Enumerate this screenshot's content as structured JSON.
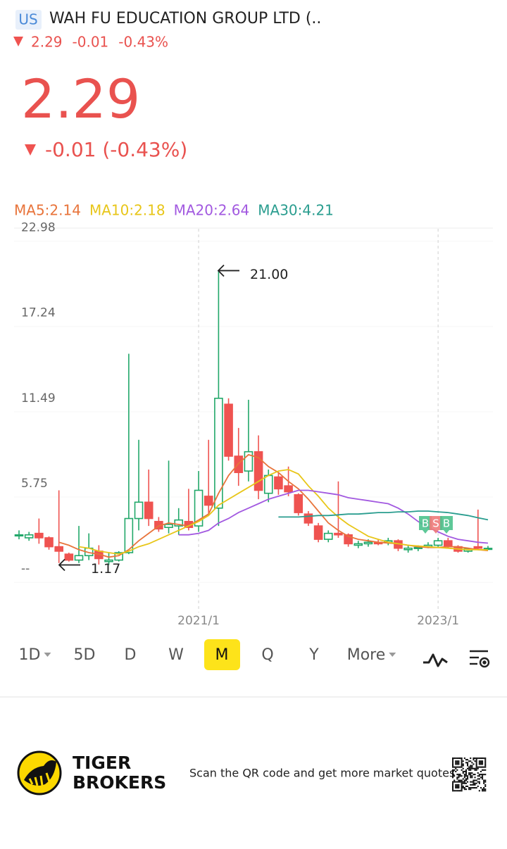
{
  "header": {
    "market": "US",
    "name": "WAH FU EDUCATION GROUP LTD  (..",
    "price": "2.29",
    "change": "-0.01",
    "change_pct": "-0.43%"
  },
  "quote": {
    "price": "2.29",
    "change": "-0.01 (-0.43%)"
  },
  "chart_data": {
    "type": "candlestick",
    "categories": [
      null,
      null,
      null,
      null,
      null,
      null,
      null,
      null,
      null,
      null,
      null,
      null,
      null,
      null,
      null,
      null,
      null,
      null,
      "2021/1",
      null,
      null,
      null,
      null,
      null,
      null,
      null,
      null,
      null,
      null,
      null,
      null,
      null,
      null,
      null,
      null,
      null,
      null,
      null,
      null,
      null,
      null,
      null,
      "2023/1",
      null,
      null,
      null,
      null,
      null
    ],
    "open": [
      3.2,
      3.0,
      3.3,
      3.0,
      2.4,
      1.9,
      1.5,
      1.8,
      2.1,
      1.4,
      1.5,
      2.0,
      4.3,
      5.4,
      4.1,
      3.7,
      3.8,
      4.1,
      3.8,
      5.8,
      5.0,
      12.0,
      8.5,
      7.5,
      8.8,
      6.0,
      7.1,
      6.5,
      5.9,
      4.6,
      3.8,
      2.9,
      3.3,
      3.2,
      2.5,
      2.6,
      2.7,
      2.7,
      2.8,
      2.2,
      2.3,
      2.4,
      2.5,
      2.8,
      2.4,
      2.1,
      2.4,
      2.25
    ],
    "high": [
      3.5,
      3.4,
      4.3,
      3.1,
      6.2,
      2.0,
      3.8,
      3.3,
      2.5,
      2.0,
      2.1,
      15.4,
      9.6,
      7.6,
      4.4,
      8.2,
      5.0,
      6.3,
      7.5,
      9.6,
      21.0,
      12.4,
      10.4,
      12.3,
      9.9,
      7.6,
      7.4,
      7.8,
      6.0,
      4.8,
      4.0,
      3.5,
      6.8,
      3.3,
      2.8,
      2.9,
      2.9,
      3.0,
      2.9,
      2.5,
      2.5,
      2.7,
      3.0,
      3.0,
      2.5,
      2.3,
      4.9,
      2.45
    ],
    "low": [
      2.9,
      2.8,
      2.6,
      2.2,
      1.3,
      1.4,
      1.3,
      1.5,
      1.2,
      1.17,
      1.4,
      1.9,
      3.5,
      3.8,
      3.4,
      3.3,
      3.2,
      3.5,
      3.4,
      4.6,
      3.8,
      8.2,
      6.5,
      6.8,
      5.6,
      5.4,
      5.9,
      5.8,
      4.5,
      3.8,
      2.7,
      2.7,
      3.0,
      2.4,
      2.3,
      2.4,
      2.5,
      2.5,
      2.1,
      2.0,
      2.1,
      2.3,
      2.4,
      2.3,
      2.0,
      2.0,
      2.2,
      2.2
    ],
    "close": [
      3.2,
      3.2,
      3.0,
      2.4,
      2.1,
      1.5,
      1.8,
      2.3,
      1.6,
      1.5,
      2.0,
      4.3,
      5.4,
      4.3,
      3.6,
      3.9,
      4.2,
      3.7,
      6.2,
      5.2,
      12.4,
      8.5,
      7.4,
      8.8,
      6.2,
      7.2,
      6.3,
      6.1,
      4.7,
      4.0,
      2.9,
      3.3,
      3.2,
      2.6,
      2.6,
      2.7,
      2.6,
      2.8,
      2.3,
      2.3,
      2.35,
      2.5,
      2.8,
      2.4,
      2.1,
      2.25,
      2.3,
      2.29
    ],
    "up_color": "#22a86a",
    "down_color": "#ef5350",
    "series": [
      {
        "name": "MA5:2.14",
        "color": "#e8743b",
        "values": [
          null,
          null,
          null,
          null,
          2.7,
          2.5,
          2.2,
          2.0,
          1.9,
          1.7,
          1.8,
          2.2,
          2.8,
          3.3,
          3.8,
          4.0,
          3.9,
          3.8,
          4.2,
          4.6,
          6.0,
          7.2,
          8.0,
          8.6,
          8.4,
          7.8,
          7.4,
          6.8,
          6.3,
          5.6,
          4.8,
          4.0,
          3.5,
          3.1,
          2.9,
          2.8,
          2.7,
          2.65,
          2.6,
          2.5,
          2.4,
          2.35,
          2.35,
          2.4,
          2.4,
          2.3,
          2.2,
          2.14
        ]
      },
      {
        "name": "MA10:2.18",
        "color": "#e8c619",
        "values": [
          null,
          null,
          null,
          null,
          null,
          null,
          2.4,
          2.3,
          2.1,
          2.0,
          1.9,
          2.1,
          2.4,
          2.6,
          2.9,
          3.2,
          3.5,
          3.8,
          4.1,
          4.5,
          5.2,
          5.6,
          6.0,
          6.4,
          6.8,
          7.2,
          7.5,
          7.6,
          7.3,
          6.5,
          5.8,
          5.0,
          4.4,
          3.9,
          3.5,
          3.1,
          2.9,
          2.7,
          2.6,
          2.5,
          2.45,
          2.4,
          2.35,
          2.3,
          2.25,
          2.2,
          2.2,
          2.18
        ]
      },
      {
        "name": "MA20:2.64",
        "color": "#a259e0",
        "values": [
          null,
          null,
          null,
          null,
          null,
          null,
          null,
          null,
          null,
          null,
          null,
          null,
          null,
          null,
          null,
          null,
          3.2,
          3.2,
          3.3,
          3.5,
          4.0,
          4.3,
          4.7,
          5.0,
          5.3,
          5.6,
          5.8,
          6.0,
          6.2,
          6.2,
          6.1,
          6.0,
          5.9,
          5.7,
          5.6,
          5.5,
          5.4,
          5.3,
          5.0,
          4.6,
          4.1,
          3.7,
          3.4,
          3.1,
          2.9,
          2.8,
          2.7,
          2.64
        ]
      },
      {
        "name": "MA30:4.21",
        "color": "#2a9d8f",
        "values": [
          null,
          null,
          null,
          null,
          null,
          null,
          null,
          null,
          null,
          null,
          null,
          null,
          null,
          null,
          null,
          null,
          null,
          null,
          null,
          null,
          null,
          null,
          null,
          null,
          null,
          null,
          4.4,
          4.4,
          4.4,
          4.45,
          4.5,
          4.5,
          4.55,
          4.6,
          4.6,
          4.65,
          4.7,
          4.7,
          4.75,
          4.75,
          4.8,
          4.8,
          4.75,
          4.7,
          4.6,
          4.5,
          4.35,
          4.21
        ]
      }
    ],
    "ylim": [
      -2.03,
      23.82
    ],
    "yticks": [
      {
        "value": 0,
        "label": "--"
      },
      5.75,
      11.49,
      17.24,
      22.98
    ],
    "high_label": {
      "value": 21.0,
      "label": "21.00"
    },
    "low_label": {
      "value": 1.17,
      "label": "1.17"
    },
    "trade_marks": [
      "B",
      "S",
      "B"
    ]
  },
  "periods": {
    "items": [
      "1D",
      "5D",
      "D",
      "W",
      "M",
      "Q",
      "Y",
      "More"
    ],
    "selected": "M"
  },
  "footer": {
    "brand_line1": "TIGER",
    "brand_line2": "BROKERS",
    "tagline": "Scan the QR code and get more market quotes"
  }
}
